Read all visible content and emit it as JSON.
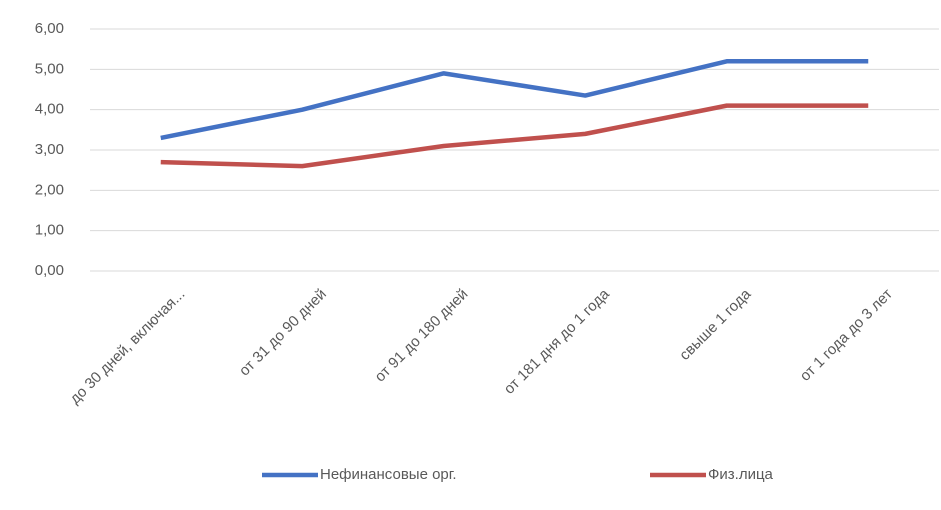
{
  "chart_data": {
    "type": "line",
    "categories": [
      "до 30 дней, включая...",
      "от 31 до 90 дней",
      "от 91 до 180 дней",
      "от 181 дня до 1 года",
      "свыше 1 года",
      "от 1 года до 3 лет"
    ],
    "series": [
      {
        "name": "Нефинансовые орг.",
        "color": "#4472c4",
        "values": [
          3.3,
          4.0,
          4.9,
          4.35,
          5.2,
          5.2
        ]
      },
      {
        "name": "Физ.лица",
        "color": "#c0504d",
        "values": [
          2.7,
          2.6,
          3.1,
          3.4,
          4.1,
          4.1
        ]
      }
    ],
    "ylim": [
      0,
      6
    ],
    "yticks": [
      {
        "value": 0,
        "label": "0,00"
      },
      {
        "value": 1,
        "label": "1,00"
      },
      {
        "value": 2,
        "label": "2,00"
      },
      {
        "value": 3,
        "label": "3,00"
      },
      {
        "value": 4,
        "label": "4,00"
      },
      {
        "value": 5,
        "label": "5,00"
      },
      {
        "value": 6,
        "label": "6,00"
      }
    ],
    "grid": true,
    "legend": "bottom"
  }
}
